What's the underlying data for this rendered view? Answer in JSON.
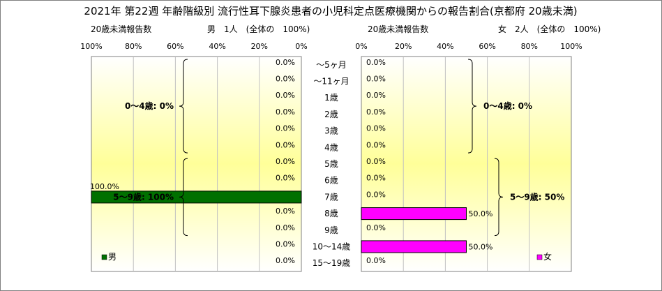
{
  "chart_data": {
    "type": "bar",
    "title": "2021年 第22週 年齢階級別 流行性耳下腺炎患者の小児科定点医療機関からの報告割合(京都府 20歳未満)",
    "categories": [
      "～5ヶ月",
      "～11ヶ月",
      "1歳",
      "2歳",
      "3歳",
      "4歳",
      "5歳",
      "6歳",
      "7歳",
      "8歳",
      "9歳",
      "10～14歳",
      "15～19歳"
    ],
    "x_ticks_left": [
      "100%",
      "80%",
      "60%",
      "40%",
      "20%",
      "0%"
    ],
    "x_ticks_right": [
      "0%",
      "20%",
      "40%",
      "60%",
      "80%",
      "100%"
    ],
    "xlim": [
      0,
      100
    ],
    "grid": true,
    "series": [
      {
        "name": "男",
        "subtitle_left": "20歳未満報告数",
        "subtitle_right": "男　1人　(全体の　100%)",
        "color": "#007000",
        "values": [
          0,
          0,
          0,
          0,
          0,
          0,
          0,
          0,
          100,
          0,
          0,
          0,
          0
        ],
        "value_labels": [
          "0.0%",
          "0.0%",
          "0.0%",
          "0.0%",
          "0.0%",
          "0.0%",
          "0.0%",
          "0.0%",
          "100.0%",
          "0.0%",
          "0.0%",
          "0.0%",
          "0.0%"
        ],
        "groups": [
          {
            "label": "0～4歳: 0%",
            "from": 0,
            "to": 5
          },
          {
            "label": "5～9歳: 100%",
            "from": 6,
            "to": 10
          }
        ],
        "legend": "男"
      },
      {
        "name": "女",
        "subtitle_left": "20歳未満報告数",
        "subtitle_right": "女　2人　(全体の　100%)",
        "color": "#ff00ff",
        "values": [
          0,
          0,
          0,
          0,
          0,
          0,
          0,
          0,
          0,
          50,
          0,
          50,
          0
        ],
        "value_labels": [
          "0.0%",
          "0.0%",
          "0.0%",
          "0.0%",
          "0.0%",
          "0.0%",
          "0.0%",
          "0.0%",
          "0.0%",
          "50.0%",
          "0.0%",
          "50.0%",
          "0.0%"
        ],
        "groups": [
          {
            "label": "0～4歳: 0%",
            "from": 0,
            "to": 5
          },
          {
            "label": "5～9歳: 50%",
            "from": 6,
            "to": 10
          }
        ],
        "legend": "女"
      }
    ]
  }
}
